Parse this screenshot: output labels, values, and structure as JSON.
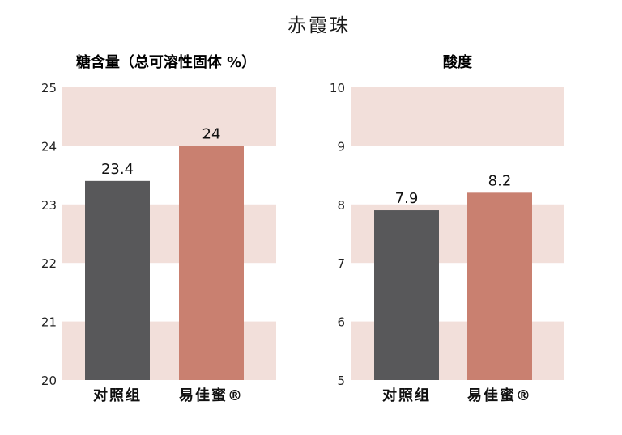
{
  "title": "赤霞珠",
  "chart_data": [
    {
      "type": "bar",
      "title": "糖含量（总可溶性固体 %）",
      "categories": [
        "对照组",
        "易佳蜜®"
      ],
      "values": [
        23.4,
        24
      ],
      "value_labels": [
        "23.4",
        "24"
      ],
      "ylim": [
        20,
        25
      ],
      "yticks": [
        "20",
        "21",
        "22",
        "23",
        "24",
        "25"
      ],
      "colors": [
        "#58585a",
        "#c98070"
      ],
      "band_color": "#f2dfda",
      "grid": "alternating horizontal bands"
    },
    {
      "type": "bar",
      "title": "酸度",
      "categories": [
        "对照组",
        "易佳蜜®"
      ],
      "values": [
        7.9,
        8.2
      ],
      "value_labels": [
        "7.9",
        "8.2"
      ],
      "ylim": [
        5,
        10
      ],
      "yticks": [
        "5",
        "6",
        "7",
        "8",
        "9",
        "10"
      ],
      "colors": [
        "#58585a",
        "#c98070"
      ],
      "band_color": "#f2dfda",
      "grid": "alternating horizontal bands"
    }
  ]
}
